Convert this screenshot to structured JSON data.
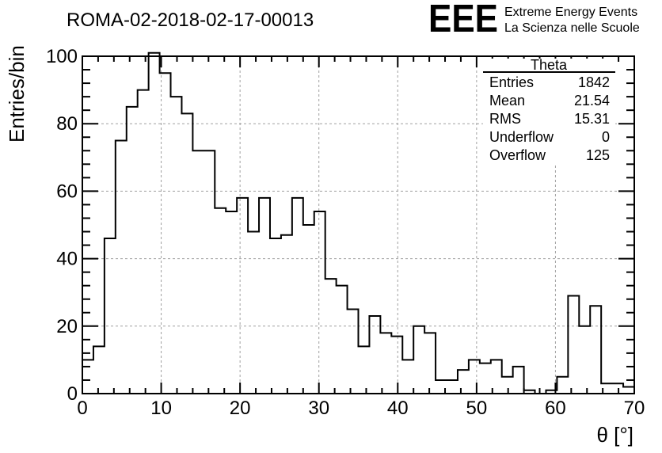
{
  "title": "ROMA-02-2018-02-17-00013",
  "logo": {
    "letters": "EEE",
    "line1": "Extreme Energy Events",
    "line2": "La Scienza nelle Scuole",
    "color": "#1a1aee"
  },
  "stats_box": {
    "title": "Theta",
    "rows": [
      {
        "label": "Entries",
        "value": "1842"
      },
      {
        "label": "Mean",
        "value": "21.54"
      },
      {
        "label": "RMS",
        "value": "15.31"
      },
      {
        "label": "Underflow",
        "value": "0"
      },
      {
        "label": "Overflow",
        "value": "125"
      }
    ]
  },
  "chart_data": {
    "type": "histogram",
    "xlabel": "θ [°]",
    "ylabel": "Entries/bin",
    "xlim": [
      0,
      70
    ],
    "ylim": [
      0,
      100
    ],
    "bin_width": 1.4,
    "x_ticks": [
      0,
      10,
      20,
      30,
      40,
      50,
      60,
      70
    ],
    "y_ticks": [
      0,
      20,
      40,
      60,
      80,
      100
    ],
    "grid": true,
    "values": [
      10,
      14,
      46,
      75,
      85,
      90,
      101,
      95,
      88,
      83,
      72,
      72,
      55,
      54,
      58,
      48,
      58,
      46,
      47,
      58,
      50,
      54,
      34,
      32,
      25,
      14,
      23,
      18,
      17,
      10,
      20,
      18,
      4,
      4,
      7,
      10,
      9,
      10,
      5,
      8,
      1,
      0,
      1,
      5,
      29,
      20,
      26,
      3,
      3,
      2
    ],
    "line_color": "#000000"
  }
}
